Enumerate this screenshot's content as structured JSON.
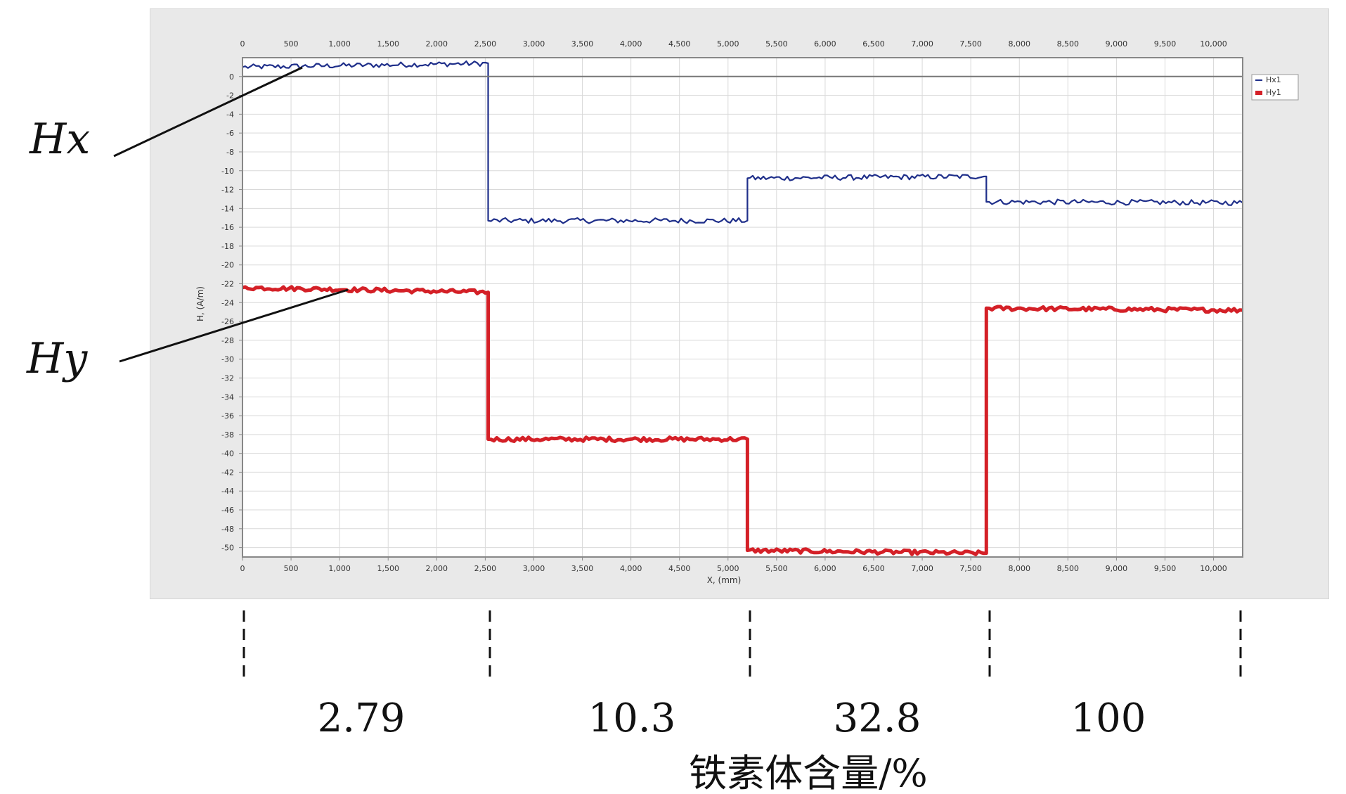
{
  "chart_data": {
    "type": "line",
    "title": "",
    "xlabel": "X, (mm)",
    "ylabel": "H, (A/m)",
    "xlim": [
      0,
      10300
    ],
    "ylim": [
      -51,
      2
    ],
    "x_ticks": [
      0,
      500,
      1000,
      1500,
      2000,
      2500,
      3000,
      3500,
      4000,
      4500,
      5000,
      5500,
      6000,
      6500,
      7000,
      7500,
      8000,
      8500,
      9000,
      9500,
      10000
    ],
    "x_tick_labels": [
      "0",
      "500",
      "1,000",
      "1,500",
      "2,000",
      "2,500",
      "3,000",
      "3,500",
      "4,000",
      "4,500",
      "5,000",
      "5,500",
      "6,000",
      "6,500",
      "7,000",
      "7,500",
      "8,000",
      "8,500",
      "9,000",
      "9,500",
      "10,000"
    ],
    "y_ticks": [
      0,
      -2,
      -4,
      -6,
      -8,
      -10,
      -12,
      -14,
      -16,
      -18,
      -20,
      -22,
      -24,
      -26,
      -28,
      -30,
      -32,
      -34,
      -36,
      -38,
      -40,
      -42,
      -44,
      -46,
      -48,
      -50
    ],
    "y_tick_labels": [
      "0",
      "-2",
      "-4",
      "-6",
      "-8",
      "-10",
      "-12",
      "-14",
      "-16",
      "-18",
      "-20",
      "-22",
      "-24",
      "-26",
      "-28",
      "-30",
      "-32",
      "-34",
      "-36",
      "-38",
      "-40",
      "-42",
      "-44",
      "-46",
      "-48",
      "-50"
    ],
    "grid": true,
    "legend_position": "top-right",
    "zero_line": 0,
    "series": [
      {
        "name": "Hx1",
        "color": "#1f2f8a",
        "x": [
          0,
          2530,
          2530,
          5200,
          5200,
          7660,
          7660,
          10300
        ],
        "y": [
          1.0,
          1.4,
          -15.3,
          -15.3,
          -10.8,
          -10.6,
          -13.3,
          -13.4
        ]
      },
      {
        "name": "Hy1",
        "color": "#d42027",
        "x": [
          0,
          2530,
          2530,
          5200,
          5200,
          7660,
          7660,
          10300
        ],
        "y": [
          -22.4,
          -22.9,
          -38.5,
          -38.5,
          -50.3,
          -50.6,
          -24.6,
          -24.8
        ]
      }
    ]
  },
  "annotations": {
    "hx_label": "Hx",
    "hy_label": "Hy"
  },
  "bands": {
    "values": [
      "2.79",
      "10.3",
      "32.8",
      "100"
    ],
    "title": "铁素体含量/%"
  }
}
